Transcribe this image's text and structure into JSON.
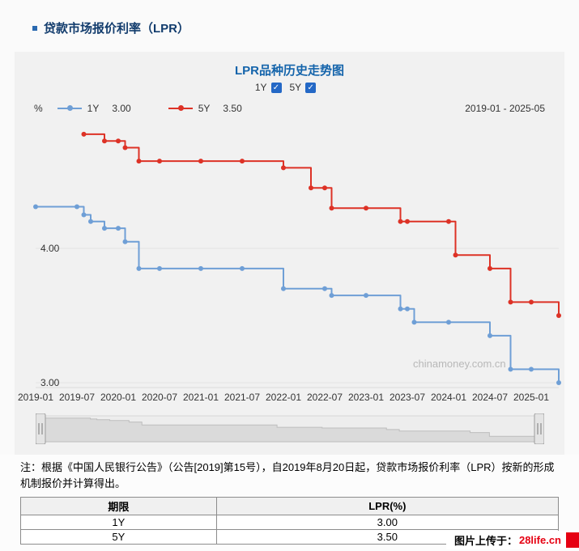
{
  "header": {
    "title": "贷款市场报价利率（LPR）"
  },
  "controls": {
    "check_glyph": "✓",
    "items": [
      {
        "label": "1Y",
        "checked": true
      },
      {
        "label": "5Y",
        "checked": true
      }
    ]
  },
  "watermark": "chinamoney.com.cn",
  "note": "注：根据《中国人民银行公告》（公告[2019]第15号），自2019年8月20日起，贷款市场报价利率（LPR）按新的形成机制报价并计算得出。",
  "table": {
    "headers": [
      "期限",
      "LPR(%)"
    ],
    "rows": [
      [
        "1Y",
        "3.00"
      ],
      [
        "5Y",
        "3.50"
      ]
    ]
  },
  "footer": {
    "prefix": "图片上传于：",
    "site": "28life.cn"
  },
  "chart_data": {
    "type": "line",
    "step": true,
    "title": "LPR品种历史走势图",
    "unit": "%",
    "range_label": "2019-01 - 2025-05",
    "x_start": "2019-01",
    "x_end": "2025-05",
    "x_ticks": [
      "2019-01",
      "2019-07",
      "2020-01",
      "2020-07",
      "2021-01",
      "2021-07",
      "2022-01",
      "2022-07",
      "2023-01",
      "2023-07",
      "2024-01",
      "2024-07",
      "2025-01"
    ],
    "y_axis": [
      {
        "value": 3,
        "label": "3.00"
      },
      {
        "value": 4,
        "label": "4.00"
      }
    ],
    "ylim": [
      2.95,
      5.0
    ],
    "grid": true,
    "legend_position": "top-left",
    "series": [
      {
        "name": "1Y",
        "current": "3.00",
        "color": "#6f9fd6",
        "points": [
          [
            "2019-01",
            4.31
          ],
          [
            "2019-08",
            4.25
          ],
          [
            "2019-09",
            4.2
          ],
          [
            "2019-11",
            4.15
          ],
          [
            "2020-02",
            4.05
          ],
          [
            "2020-04",
            3.85
          ],
          [
            "2022-01",
            3.7
          ],
          [
            "2022-08",
            3.65
          ],
          [
            "2023-06",
            3.55
          ],
          [
            "2023-08",
            3.45
          ],
          [
            "2024-07",
            3.35
          ],
          [
            "2024-10",
            3.1
          ],
          [
            "2025-05",
            3.0
          ]
        ]
      },
      {
        "name": "5Y",
        "current": "3.50",
        "color": "#dd3226",
        "points": [
          [
            "2019-08",
            4.85
          ],
          [
            "2019-11",
            4.8
          ],
          [
            "2020-02",
            4.75
          ],
          [
            "2020-04",
            4.65
          ],
          [
            "2022-01",
            4.6
          ],
          [
            "2022-05",
            4.45
          ],
          [
            "2022-08",
            4.3
          ],
          [
            "2023-06",
            4.2
          ],
          [
            "2024-02",
            3.95
          ],
          [
            "2024-07",
            3.85
          ],
          [
            "2024-10",
            3.6
          ],
          [
            "2025-05",
            3.5
          ]
        ]
      }
    ]
  }
}
